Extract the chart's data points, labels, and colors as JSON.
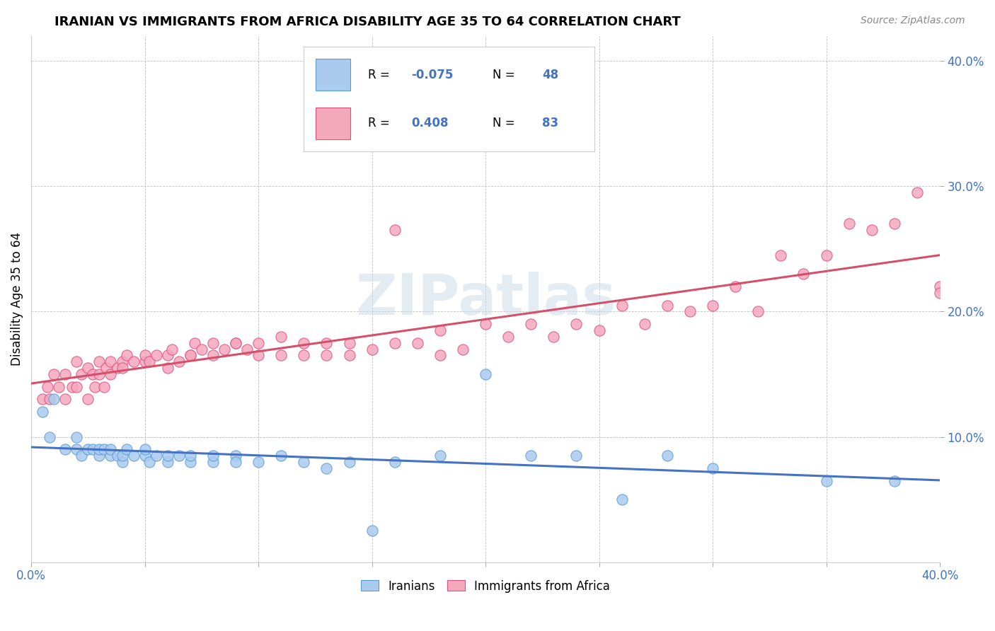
{
  "title": "IRANIAN VS IMMIGRANTS FROM AFRICA DISABILITY AGE 35 TO 64 CORRELATION CHART",
  "source": "Source: ZipAtlas.com",
  "ylabel": "Disability Age 35 to 64",
  "xlim": [
    0.0,
    0.4
  ],
  "ylim": [
    0.0,
    0.42
  ],
  "xticks": [
    0.0,
    0.05,
    0.1,
    0.15,
    0.2,
    0.25,
    0.3,
    0.35,
    0.4
  ],
  "yticks": [
    0.1,
    0.2,
    0.3,
    0.4
  ],
  "yticklabels": [
    "10.0%",
    "20.0%",
    "30.0%",
    "40.0%"
  ],
  "iranian_color": "#aacbee",
  "african_color": "#f4a8bc",
  "iranian_edge": "#5b9bd5",
  "african_edge": "#e05080",
  "line_color_iranian": "#4472c4",
  "line_color_african": "#d4506a",
  "watermark": "ZIPatlas",
  "R_iranian": -0.075,
  "N_iranian": 48,
  "R_african": 0.408,
  "N_african": 83,
  "iranian_x": [
    0.005,
    0.008,
    0.01,
    0.015,
    0.02,
    0.02,
    0.022,
    0.025,
    0.027,
    0.03,
    0.03,
    0.032,
    0.035,
    0.035,
    0.038,
    0.04,
    0.04,
    0.042,
    0.045,
    0.05,
    0.05,
    0.052,
    0.055,
    0.06,
    0.06,
    0.065,
    0.07,
    0.07,
    0.08,
    0.08,
    0.09,
    0.09,
    0.1,
    0.11,
    0.12,
    0.13,
    0.14,
    0.15,
    0.16,
    0.18,
    0.2,
    0.22,
    0.24,
    0.26,
    0.28,
    0.3,
    0.35,
    0.38
  ],
  "iranian_y": [
    0.12,
    0.1,
    0.13,
    0.09,
    0.09,
    0.1,
    0.085,
    0.09,
    0.09,
    0.085,
    0.09,
    0.09,
    0.085,
    0.09,
    0.085,
    0.08,
    0.085,
    0.09,
    0.085,
    0.085,
    0.09,
    0.08,
    0.085,
    0.08,
    0.085,
    0.085,
    0.08,
    0.085,
    0.08,
    0.085,
    0.085,
    0.08,
    0.08,
    0.085,
    0.08,
    0.075,
    0.08,
    0.025,
    0.08,
    0.085,
    0.15,
    0.085,
    0.085,
    0.05,
    0.085,
    0.075,
    0.065,
    0.065
  ],
  "african_x": [
    0.005,
    0.007,
    0.008,
    0.01,
    0.012,
    0.015,
    0.015,
    0.018,
    0.02,
    0.02,
    0.022,
    0.025,
    0.025,
    0.027,
    0.028,
    0.03,
    0.03,
    0.032,
    0.033,
    0.035,
    0.035,
    0.038,
    0.04,
    0.04,
    0.042,
    0.045,
    0.05,
    0.05,
    0.052,
    0.055,
    0.06,
    0.06,
    0.062,
    0.065,
    0.07,
    0.07,
    0.072,
    0.075,
    0.08,
    0.08,
    0.085,
    0.09,
    0.09,
    0.095,
    0.1,
    0.1,
    0.11,
    0.11,
    0.12,
    0.12,
    0.13,
    0.13,
    0.14,
    0.14,
    0.15,
    0.16,
    0.16,
    0.17,
    0.18,
    0.18,
    0.19,
    0.2,
    0.21,
    0.22,
    0.23,
    0.24,
    0.25,
    0.26,
    0.27,
    0.28,
    0.29,
    0.3,
    0.31,
    0.32,
    0.33,
    0.34,
    0.35,
    0.36,
    0.37,
    0.38,
    0.39,
    0.4,
    0.4
  ],
  "african_y": [
    0.13,
    0.14,
    0.13,
    0.15,
    0.14,
    0.15,
    0.13,
    0.14,
    0.14,
    0.16,
    0.15,
    0.13,
    0.155,
    0.15,
    0.14,
    0.15,
    0.16,
    0.14,
    0.155,
    0.15,
    0.16,
    0.155,
    0.16,
    0.155,
    0.165,
    0.16,
    0.16,
    0.165,
    0.16,
    0.165,
    0.155,
    0.165,
    0.17,
    0.16,
    0.165,
    0.165,
    0.175,
    0.17,
    0.165,
    0.175,
    0.17,
    0.175,
    0.175,
    0.17,
    0.165,
    0.175,
    0.165,
    0.18,
    0.165,
    0.175,
    0.165,
    0.175,
    0.165,
    0.175,
    0.17,
    0.175,
    0.265,
    0.175,
    0.165,
    0.185,
    0.17,
    0.19,
    0.18,
    0.19,
    0.18,
    0.19,
    0.185,
    0.205,
    0.19,
    0.205,
    0.2,
    0.205,
    0.22,
    0.2,
    0.245,
    0.23,
    0.245,
    0.27,
    0.265,
    0.27,
    0.295,
    0.22,
    0.215
  ]
}
